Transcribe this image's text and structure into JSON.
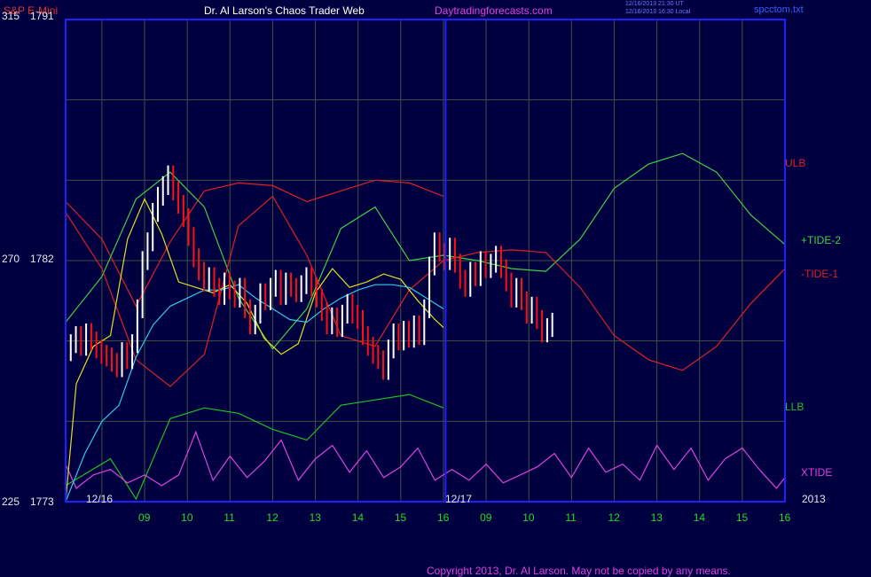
{
  "header": {
    "instrument": "S&P E-Mini",
    "title": "Dr. Al Larson's Chaos Trader Web",
    "site": "Daytradingforecasts.com",
    "stamp1": "12/16/2013 21:30 UT",
    "stamp2": "12/16/2013 16:30 Local",
    "file": "spcctom.txt"
  },
  "footer": {
    "copyright": "Copyright 2013, Dr. Al Larson. May not be copied by any means."
  },
  "colors": {
    "background": "#000040",
    "frame": "#2020ff",
    "grid": "#405040",
    "ulb": "#e02020",
    "llb": "#20c020",
    "tide2": "#40d040",
    "tide1": "#e02020",
    "xtide": "#e040e0",
    "price_up": "#ffffff",
    "price_down": "#ff1010",
    "ma_fast": "#e0e020",
    "ma_slow": "#30c8e8"
  },
  "chart_data": {
    "type": "line",
    "y_axis_labels": [
      {
        "left": "315",
        "right": "1791",
        "price": 1791
      },
      {
        "left": "270",
        "right": "1782",
        "price": 1782
      },
      {
        "left": "225",
        "right": "1773",
        "price": 1773
      }
    ],
    "ylim": [
      1773,
      1791
    ],
    "x_hours": [
      "09",
      "10",
      "11",
      "12",
      "13",
      "14",
      "15",
      "16",
      "09",
      "10",
      "11",
      "12",
      "13",
      "14",
      "15",
      "16"
    ],
    "date_labels": [
      "12/16",
      "12/17",
      "2013"
    ],
    "session_split_hour": 8.05,
    "xlim": [
      -0.85,
      16.0
    ],
    "grid": true,
    "series_labels": [
      "ULB",
      "+TIDE-2",
      "-TIDE-1",
      "LLB",
      "XTIDE"
    ],
    "series": [
      {
        "name": "ULB",
        "role": "ulb",
        "x": [
          -0.85,
          0,
          0.8,
          1.6,
          2.4,
          3.2,
          4.0,
          4.8,
          5.6,
          6.4,
          7.2,
          8.0
        ],
        "y": [
          1784.2,
          1782.8,
          1780.3,
          1782.7,
          1784.6,
          1784.9,
          1784.8,
          1784.2,
          1784.6,
          1785.0,
          1784.9,
          1784.4
        ]
      },
      {
        "name": "LLB",
        "role": "llb",
        "x": [
          -0.85,
          0.2,
          0.8,
          1.6,
          2.4,
          3.2,
          4.0,
          4.8,
          5.6,
          6.4,
          7.2,
          8.0
        ],
        "y": [
          1773.6,
          1774.6,
          1773.1,
          1776.1,
          1776.5,
          1776.3,
          1775.7,
          1775.3,
          1776.6,
          1776.8,
          1777.0,
          1776.5
        ]
      },
      {
        "name": "+TIDE-2",
        "role": "tide2",
        "x": [
          -0.85,
          0,
          0.8,
          1.6,
          2.4,
          3.2,
          4.0,
          4.8,
          5.6,
          6.4,
          7.2,
          8.0,
          8.8,
          9.6,
          10.4,
          11.2,
          12.0,
          12.8,
          13.6,
          14.4,
          15.2,
          16.0
        ],
        "y": [
          1779.7,
          1781.4,
          1784.3,
          1785.3,
          1784.0,
          1780.6,
          1778.7,
          1780.2,
          1783.2,
          1784.0,
          1782.0,
          1782.2,
          1782.0,
          1781.7,
          1781.6,
          1782.8,
          1784.7,
          1785.6,
          1786.0,
          1785.3,
          1783.7,
          1782.6
        ]
      },
      {
        "name": "-TIDE-1",
        "role": "tide1",
        "x": [
          -0.85,
          0,
          0.8,
          1.6,
          2.4,
          3.2,
          4.0,
          4.8,
          5.6,
          6.4,
          7.2,
          8.0,
          8.8,
          9.6,
          10.4,
          11.2,
          12.0,
          12.8,
          13.6,
          14.4,
          15.2,
          16.0
        ],
        "y": [
          1783.8,
          1781.7,
          1778.3,
          1777.3,
          1778.5,
          1783.3,
          1784.4,
          1782.2,
          1779.2,
          1778.8,
          1780.9,
          1782.0,
          1782.3,
          1782.4,
          1782.3,
          1781.0,
          1779.2,
          1778.3,
          1777.9,
          1778.8,
          1780.4,
          1781.7
        ]
      },
      {
        "name": "XTIDE",
        "role": "xtide",
        "x": [
          -0.85,
          -0.6,
          -0.2,
          0.2,
          0.6,
          1.0,
          1.4,
          1.8,
          2.2,
          2.6,
          3.0,
          3.4,
          3.8,
          4.2,
          4.6,
          5.0,
          5.4,
          5.8,
          6.2,
          6.6,
          7.0,
          7.4,
          7.8,
          8.2,
          8.6,
          9.0,
          9.4,
          9.8,
          10.2,
          10.6,
          11.0,
          11.4,
          11.8,
          12.2,
          12.6,
          13.0,
          13.4,
          13.8,
          14.2,
          14.6,
          15.0,
          15.4,
          15.8,
          16.0
        ],
        "y": [
          1774.4,
          1773.5,
          1774.0,
          1774.2,
          1773.7,
          1774.0,
          1773.6,
          1774.0,
          1775.6,
          1773.8,
          1774.7,
          1773.9,
          1774.5,
          1775.3,
          1773.8,
          1774.6,
          1775.1,
          1774.1,
          1774.9,
          1773.9,
          1774.3,
          1775.0,
          1773.8,
          1774.2,
          1773.8,
          1774.4,
          1773.7,
          1774.0,
          1774.3,
          1774.8,
          1773.9,
          1775.0,
          1774.1,
          1774.4,
          1773.8,
          1775.1,
          1774.2,
          1775.0,
          1773.8,
          1774.6,
          1775.0,
          1774.2,
          1773.5,
          1773.9
        ]
      },
      {
        "name": "MA-fast",
        "role": "ma_fast",
        "x": [
          -0.85,
          -0.6,
          -0.2,
          0.2,
          0.6,
          1.0,
          1.4,
          1.8,
          2.2,
          2.6,
          3.0,
          3.4,
          3.8,
          4.2,
          4.6,
          5.0,
          5.4,
          5.8,
          6.2,
          6.6,
          7.0,
          7.4,
          7.8,
          8.0
        ],
        "y": [
          1773.0,
          1777.4,
          1778.8,
          1779.2,
          1782.8,
          1784.3,
          1783.0,
          1781.2,
          1781.0,
          1780.8,
          1781.1,
          1780.4,
          1779.1,
          1778.5,
          1778.9,
          1780.8,
          1781.7,
          1781.0,
          1781.2,
          1781.5,
          1781.3,
          1780.5,
          1779.8,
          1779.5
        ]
      },
      {
        "name": "MA-slow",
        "role": "ma_slow",
        "x": [
          -0.85,
          -0.4,
          0,
          0.4,
          0.8,
          1.2,
          1.6,
          2.0,
          2.4,
          2.8,
          3.2,
          3.6,
          4.0,
          4.4,
          4.8,
          5.2,
          5.6,
          6.0,
          6.4,
          6.8,
          7.2,
          7.6,
          8.0
        ],
        "y": [
          1773.0,
          1774.8,
          1776.0,
          1776.6,
          1778.4,
          1779.6,
          1780.3,
          1780.6,
          1780.9,
          1780.9,
          1781.1,
          1780.6,
          1780.2,
          1779.8,
          1779.7,
          1780.2,
          1780.6,
          1780.9,
          1781.1,
          1781.1,
          1781.0,
          1780.6,
          1780.2
        ]
      }
    ],
    "price": {
      "role": "ohlc-bars",
      "x_start": -0.85,
      "x_step": 0.12,
      "values": [
        1778.6,
        1778.9,
        1779.2,
        1778.8,
        1779.3,
        1779.0,
        1778.7,
        1778.5,
        1778.4,
        1778.2,
        1778.0,
        1778.6,
        1778.3,
        1778.9,
        1780.2,
        1782.0,
        1782.7,
        1783.8,
        1784.4,
        1784.8,
        1785.2,
        1784.6,
        1784.1,
        1783.6,
        1782.9,
        1782.1,
        1781.6,
        1781.2,
        1781.4,
        1781.0,
        1780.7,
        1781.2,
        1780.9,
        1780.6,
        1781.0,
        1780.2,
        1779.6,
        1780.0,
        1780.8,
        1780.5,
        1781.0,
        1781.3,
        1780.7,
        1781.2,
        1781.0,
        1780.8,
        1781.1,
        1781.4,
        1781.0,
        1780.6,
        1780.1,
        1779.6,
        1779.9,
        1779.5,
        1780.0,
        1780.4,
        1780.0,
        1779.8,
        1779.2,
        1778.8,
        1778.5,
        1778.3,
        1777.9,
        1778.7,
        1779.3,
        1779.0,
        1779.4,
        1779.1,
        1779.6,
        1779.2,
        1780.2,
        1781.8,
        1782.7,
        1782.3,
        1782.0,
        1782.5,
        1781.9,
        1781.3,
        1781.0,
        1781.6,
        1781.4,
        1782.0,
        1781.7,
        1781.9,
        1782.2,
        1781.7,
        1781.2,
        1780.6,
        1781.0,
        1780.5,
        1780.0,
        1780.3,
        1779.8,
        1779.3,
        1779.5,
        1779.7
      ]
    }
  }
}
